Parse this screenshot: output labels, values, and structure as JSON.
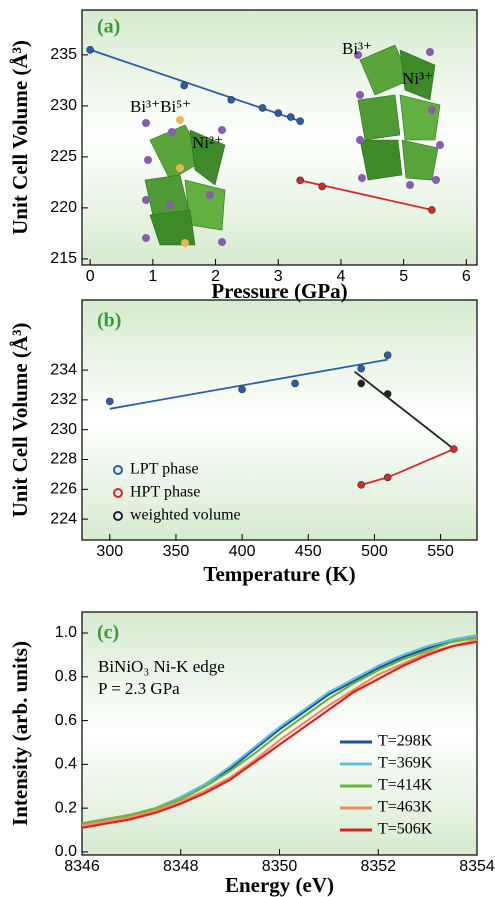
{
  "chart_data": [
    {
      "type": "scatter",
      "x_label": "Pressure (GPa)",
      "y_label": "Unit Cell Volume (Å³)",
      "xlim": [
        -0.13,
        6.17
      ],
      "xticks": [
        0,
        1,
        2,
        3,
        4,
        5,
        6
      ],
      "ylim": [
        214.4,
        239.4
      ],
      "yticks": [
        215,
        220,
        225,
        230,
        235
      ],
      "series": [
        {
          "color": "#2a5caa",
          "mode": "marker",
          "x": [
            0,
            1.5,
            2.25,
            2.75,
            3,
            3.2,
            3.35
          ],
          "values": [
            235.5,
            232,
            230.6,
            229.8,
            229.3,
            228.9,
            228.5
          ]
        },
        {
          "color": "#d42a2a",
          "mode": "marker",
          "x": [
            3.35,
            3.7,
            5.45
          ],
          "values": [
            222.7,
            222.1,
            219.8
          ]
        },
        {
          "color": "#2a5caa",
          "mode": "line",
          "x": [
            0,
            3.35
          ],
          "values": [
            235.5,
            228.5
          ]
        },
        {
          "color": "#d42a2a",
          "mode": "line",
          "x": [
            3.35,
            5.45
          ],
          "values": [
            222.7,
            219.8
          ]
        }
      ],
      "annotations": [
        "(a)",
        "Bi³⁺Bi⁵⁺",
        "Ni²⁺",
        "Bi³⁺",
        "Ni³⁺"
      ]
    },
    {
      "type": "scatter",
      "x_label": "Temperature (K)",
      "y_label": "Unit Cell Volume (Å³)",
      "xlim": [
        279,
        577.5
      ],
      "xticks": [
        300,
        350,
        400,
        450,
        500,
        550
      ],
      "ylim": [
        222.6,
        238.7
      ],
      "yticks": [
        224,
        226,
        228,
        230,
        232,
        234
      ],
      "series": [
        {
          "name": "LPT phase",
          "color": "#2a5caa",
          "mode": "marker",
          "x": [
            300,
            400,
            440,
            490,
            510
          ],
          "values": [
            231.9,
            232.7,
            233.1,
            234.1,
            235.0
          ]
        },
        {
          "name": "HPT phase",
          "color": "#d42a2a",
          "mode": "marker",
          "x": [
            490,
            510,
            560
          ],
          "values": [
            226.3,
            226.8,
            228.7
          ]
        },
        {
          "name": "weighted volume",
          "color": "#222222",
          "mode": "marker",
          "x": [
            490,
            510
          ],
          "values": [
            233.1,
            232.4
          ]
        },
        {
          "color": "#2a5caa",
          "mode": "line",
          "x": [
            300,
            510
          ],
          "values": [
            231.4,
            234.7
          ]
        },
        {
          "color": "#d42a2a",
          "mode": "line",
          "x": [
            490,
            510,
            560
          ],
          "values": [
            226.3,
            226.8,
            228.7
          ]
        },
        {
          "color": "#222222",
          "mode": "line",
          "x": [
            485,
            560
          ],
          "values": [
            233.9,
            228.7
          ]
        }
      ],
      "annotations": [
        "(b)"
      ]
    },
    {
      "type": "line",
      "x_label": "Energy (eV)",
      "y_label": "Intensity (arb. units)",
      "xlim": [
        8346,
        8354
      ],
      "xticks": [
        8346,
        8348,
        8350,
        8352,
        8354
      ],
      "ylim": [
        -0.014,
        1.096
      ],
      "yticks": [
        {
          "value": 0,
          "label": "0.0"
        },
        0.2,
        0.4,
        0.6,
        0.8,
        {
          "value": 1,
          "label": "1.0"
        }
      ],
      "x": [
        8346,
        8346.5,
        8347,
        8347.5,
        8348,
        8348.5,
        8349,
        8349.5,
        8350,
        8350.5,
        8351,
        8351.5,
        8352,
        8352.5,
        8353,
        8353.5,
        8354
      ],
      "series": [
        {
          "name": "T=298K",
          "color": "#1f4e9c",
          "values": [
            0.13,
            0.15,
            0.17,
            0.2,
            0.25,
            0.31,
            0.38,
            0.47,
            0.56,
            0.64,
            0.72,
            0.78,
            0.84,
            0.89,
            0.93,
            0.96,
            0.98
          ]
        },
        {
          "name": "T=369K",
          "color": "#5bc0e0",
          "values": [
            0.13,
            0.15,
            0.17,
            0.2,
            0.25,
            0.31,
            0.39,
            0.48,
            0.57,
            0.65,
            0.73,
            0.79,
            0.85,
            0.9,
            0.94,
            0.97,
            0.99
          ]
        },
        {
          "name": "T=414K",
          "color": "#6ab43a",
          "values": [
            0.13,
            0.15,
            0.17,
            0.2,
            0.24,
            0.3,
            0.37,
            0.45,
            0.54,
            0.62,
            0.7,
            0.77,
            0.83,
            0.88,
            0.92,
            0.96,
            0.98
          ]
        },
        {
          "name": "T=463K",
          "color": "#f08c60",
          "values": [
            0.12,
            0.14,
            0.16,
            0.19,
            0.23,
            0.28,
            0.34,
            0.42,
            0.51,
            0.59,
            0.67,
            0.74,
            0.81,
            0.86,
            0.91,
            0.94,
            0.97
          ]
        },
        {
          "name": "T=506K",
          "color": "#e02020",
          "values": [
            0.11,
            0.13,
            0.15,
            0.18,
            0.22,
            0.27,
            0.33,
            0.41,
            0.49,
            0.57,
            0.65,
            0.73,
            0.79,
            0.85,
            0.9,
            0.94,
            0.96
          ]
        }
      ],
      "annotations": [
        "(c)",
        "BiNiO₃ Ni-K edge",
        "P = 2.3 GPa"
      ]
    }
  ]
}
